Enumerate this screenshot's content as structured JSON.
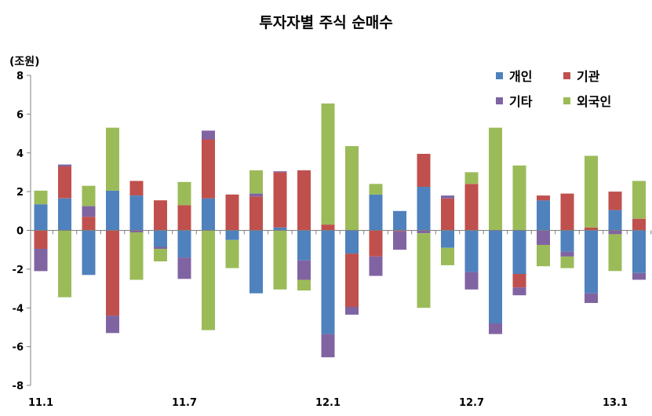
{
  "chart_data": {
    "type": "bar",
    "stacked": true,
    "title": "투자자별 주식 순매수",
    "unit_label": "(조원)",
    "ylim": [
      -8,
      8
    ],
    "y_ticks": [
      "8",
      "6",
      "4",
      "2",
      "0",
      "-2",
      "-4",
      "-6",
      "-8"
    ],
    "x_tick_labels": [
      "11.1",
      "11.7",
      "12.1",
      "12.7",
      "13.1"
    ],
    "x_tick_label_indices": [
      0,
      6,
      12,
      18,
      24
    ],
    "grid": false,
    "legend_position": "top-right",
    "series": [
      {
        "name": "개인",
        "color": "#4f81bd",
        "values": [
          1.35,
          1.65,
          -2.3,
          2.05,
          1.8,
          -0.85,
          -1.4,
          1.65,
          -0.5,
          -3.25,
          0.15,
          -1.55,
          -5.35,
          -1.2,
          1.85,
          1.0,
          2.25,
          -0.9,
          -2.15,
          -4.8,
          -2.25,
          1.55,
          -1.1,
          -3.25,
          1.05,
          -2.2
        ]
      },
      {
        "name": "기관",
        "color": "#c0504d",
        "values": [
          -0.95,
          1.65,
          0.7,
          -4.4,
          0.75,
          1.55,
          1.3,
          3.05,
          1.85,
          1.75,
          2.85,
          3.1,
          0.3,
          -2.75,
          -1.35,
          -0.05,
          1.7,
          1.65,
          2.4,
          0.0,
          -0.7,
          0.25,
          1.9,
          0.15,
          0.95,
          0.6
        ]
      },
      {
        "name": "기타",
        "color": "#8064a2",
        "values": [
          -1.15,
          0.1,
          0.55,
          -0.9,
          -0.1,
          -0.1,
          -1.1,
          0.45,
          0.0,
          0.15,
          0.05,
          -1.0,
          -1.2,
          -0.4,
          -1.0,
          -0.95,
          -0.15,
          0.15,
          -0.9,
          -0.55,
          -0.4,
          -0.75,
          -0.25,
          -0.5,
          -0.2,
          -0.35
        ]
      },
      {
        "name": "외국인",
        "color": "#9bbb59",
        "values": [
          0.7,
          -3.45,
          1.05,
          3.25,
          -2.45,
          -0.65,
          1.2,
          -5.15,
          -1.45,
          1.2,
          -3.05,
          -0.55,
          6.25,
          4.35,
          0.55,
          0.0,
          -3.85,
          -0.9,
          0.6,
          5.3,
          3.35,
          -1.1,
          -0.6,
          3.7,
          -1.9,
          1.95
        ]
      }
    ]
  }
}
